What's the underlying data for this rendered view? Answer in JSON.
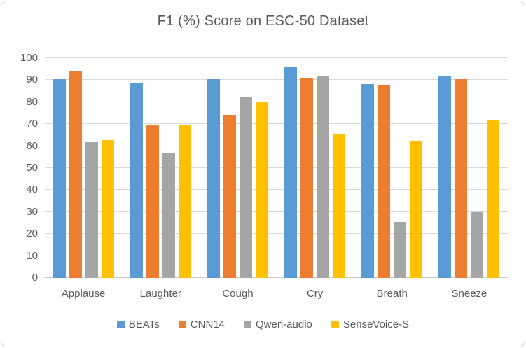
{
  "chart_data": {
    "type": "bar",
    "title": "F1 (%) Score on ESC-50 Dataset",
    "xlabel": "",
    "ylabel": "",
    "ylim": [
      0,
      100
    ],
    "ytick_step": 10,
    "grid": true,
    "legend_position": "bottom",
    "categories": [
      "Applause",
      "Laughter",
      "Cough",
      "Cry",
      "Breath",
      "Sneeze"
    ],
    "series": [
      {
        "name": "BEATs",
        "color": "#5B9BD5",
        "values": [
          90.5,
          88.6,
          90.4,
          96.3,
          88.3,
          92.0
        ]
      },
      {
        "name": "CNN14",
        "color": "#ED7D31",
        "values": [
          94.0,
          69.4,
          74.2,
          91.1,
          87.9,
          90.4
        ]
      },
      {
        "name": "Qwen-audio",
        "color": "#A5A5A5",
        "values": [
          61.7,
          57.1,
          82.4,
          91.7,
          25.5,
          29.8
        ]
      },
      {
        "name": "SenseVoice-S",
        "color": "#FFC000",
        "values": [
          62.8,
          69.7,
          80.3,
          65.5,
          62.5,
          71.8
        ]
      }
    ],
    "colors": {
      "title_text": "#595959",
      "axis_text": "#595959",
      "gridline": "#D9D9D9",
      "chart_border": "#D7D7D7",
      "background": "#FFFFFF"
    }
  }
}
